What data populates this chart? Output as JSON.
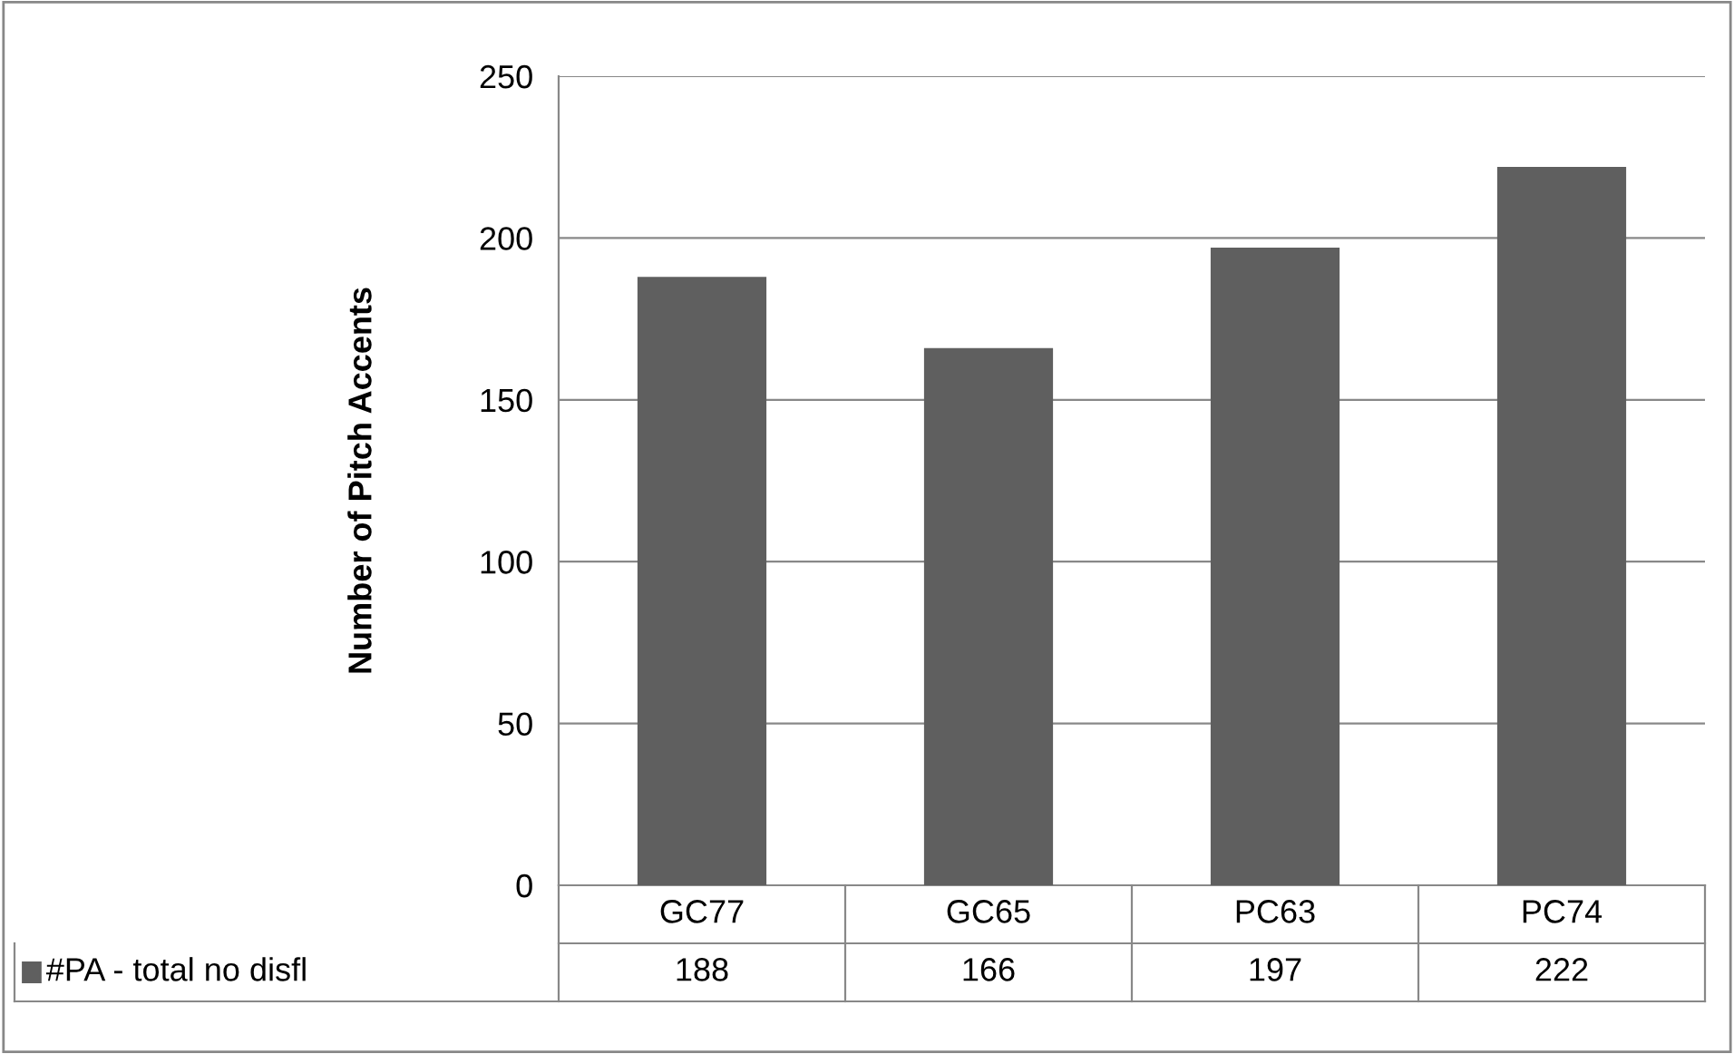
{
  "chart_data": {
    "type": "bar",
    "ylabel": "Number of Pitch Accents",
    "categories": [
      "GC77",
      "GC65",
      "PC63",
      "PC74"
    ],
    "series": [
      {
        "name": "#PA - total no disfl",
        "color": "#5f5f5f",
        "values": [
          188,
          166,
          197,
          222
        ]
      }
    ],
    "ylim": [
      0,
      250
    ],
    "yticks": [
      0,
      50,
      100,
      150,
      200,
      250
    ],
    "grid": "y",
    "data_labels": true,
    "legend": "bottom"
  }
}
